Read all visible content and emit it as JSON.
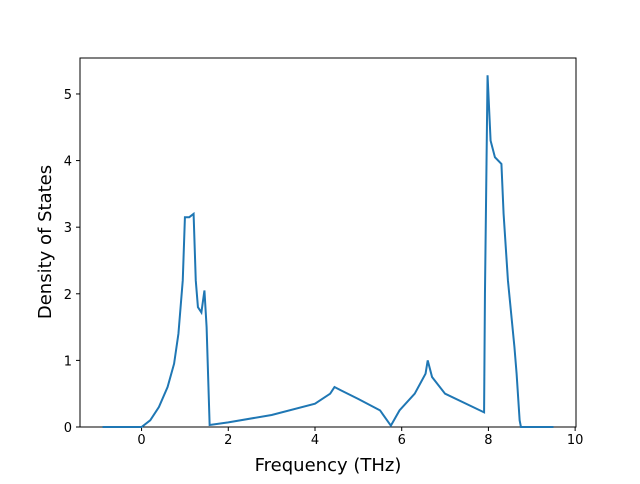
{
  "chart_data": {
    "type": "line",
    "xlabel": "Frequency (THz)",
    "ylabel": "Density of States",
    "series": [
      {
        "color": "#1f77b4",
        "x": [
          -0.9,
          0,
          0.2,
          0.4,
          0.6,
          0.75,
          0.85,
          0.95,
          1.0,
          1.1,
          1.2,
          1.25,
          1.3,
          1.38,
          1.45,
          1.5,
          1.57,
          2,
          3,
          4,
          4.35,
          4.45,
          4.6,
          5,
          5.5,
          5.75,
          5.95,
          6.3,
          6.55,
          6.6,
          6.7,
          7,
          7.9,
          7.92,
          7.98,
          8.05,
          8.15,
          8.3,
          8.35,
          8.45,
          8.6,
          8.65,
          8.72,
          8.75,
          9.5
        ],
        "values": [
          0,
          0,
          0.1,
          0.3,
          0.6,
          0.95,
          1.4,
          2.2,
          3.15,
          3.15,
          3.2,
          2.2,
          1.8,
          1.72,
          2.05,
          1.5,
          0.03,
          0.07,
          0.18,
          0.35,
          0.5,
          0.6,
          0.55,
          0.42,
          0.25,
          0.02,
          0.25,
          0.5,
          0.8,
          1.0,
          0.75,
          0.5,
          0.22,
          2.0,
          5.28,
          4.3,
          4.05,
          3.95,
          3.2,
          2.2,
          1.2,
          0.8,
          0.1,
          0,
          0
        ]
      }
    ],
    "xlim": [
      -1.42,
      10.02
    ],
    "xticks": [
      0,
      2,
      4,
      6,
      8,
      10
    ],
    "ylim": [
      0,
      5.54
    ],
    "yticks": [
      0,
      1,
      2,
      3,
      4,
      5
    ]
  }
}
